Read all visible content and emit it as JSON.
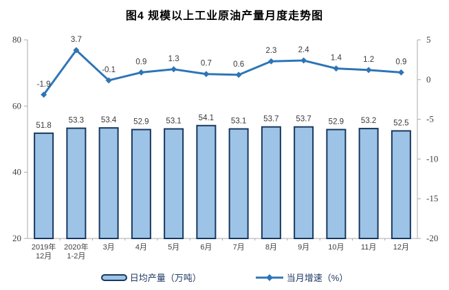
{
  "title": "图4  规模以上工业原油产量月度走势图",
  "chart_data": {
    "type": "bar",
    "subtype": "bar-line-combo",
    "title": "图4  规模以上工业原油产量月度走势图",
    "categories": [
      [
        "2019年",
        "12月"
      ],
      [
        "2020年",
        "1-2月"
      ],
      [
        "3月"
      ],
      [
        "4月"
      ],
      [
        "5月"
      ],
      [
        "6月"
      ],
      [
        "7月"
      ],
      [
        "8月"
      ],
      [
        "9月"
      ],
      [
        "10月"
      ],
      [
        "11月"
      ],
      [
        "12月"
      ]
    ],
    "series": [
      {
        "name": "日均产量（万吨）",
        "type": "bar",
        "axis": "left",
        "values": [
          51.8,
          53.3,
          53.4,
          52.9,
          53.1,
          54.1,
          53.1,
          53.7,
          53.7,
          52.9,
          53.2,
          52.5
        ]
      },
      {
        "name": "当月增速（%）",
        "type": "line",
        "axis": "right",
        "values": [
          -1.9,
          3.7,
          -0.1,
          0.9,
          1.3,
          0.7,
          0.6,
          2.3,
          2.4,
          1.4,
          1.2,
          0.9
        ]
      }
    ],
    "left_axis": {
      "min": 20,
      "max": 80,
      "ticks": [
        20,
        40,
        60,
        80
      ]
    },
    "right_axis": {
      "min": -20,
      "max": 5,
      "ticks": [
        -20,
        -15,
        -10,
        -5,
        0,
        5
      ]
    },
    "grid": false,
    "legend_position": "bottom",
    "data_labels": true
  },
  "colors": {
    "bar_fill": "#9DC3E6",
    "bar_border": "#17375E",
    "line": "#2E75B6",
    "marker": "#2E75B6",
    "axis": "#A9A9A9",
    "tick_label": "#404040",
    "x_label": "#404040",
    "data_label": "#3B3838",
    "legend_text": "#1F3864",
    "title": "#000000",
    "background": "#FFFFFF"
  }
}
